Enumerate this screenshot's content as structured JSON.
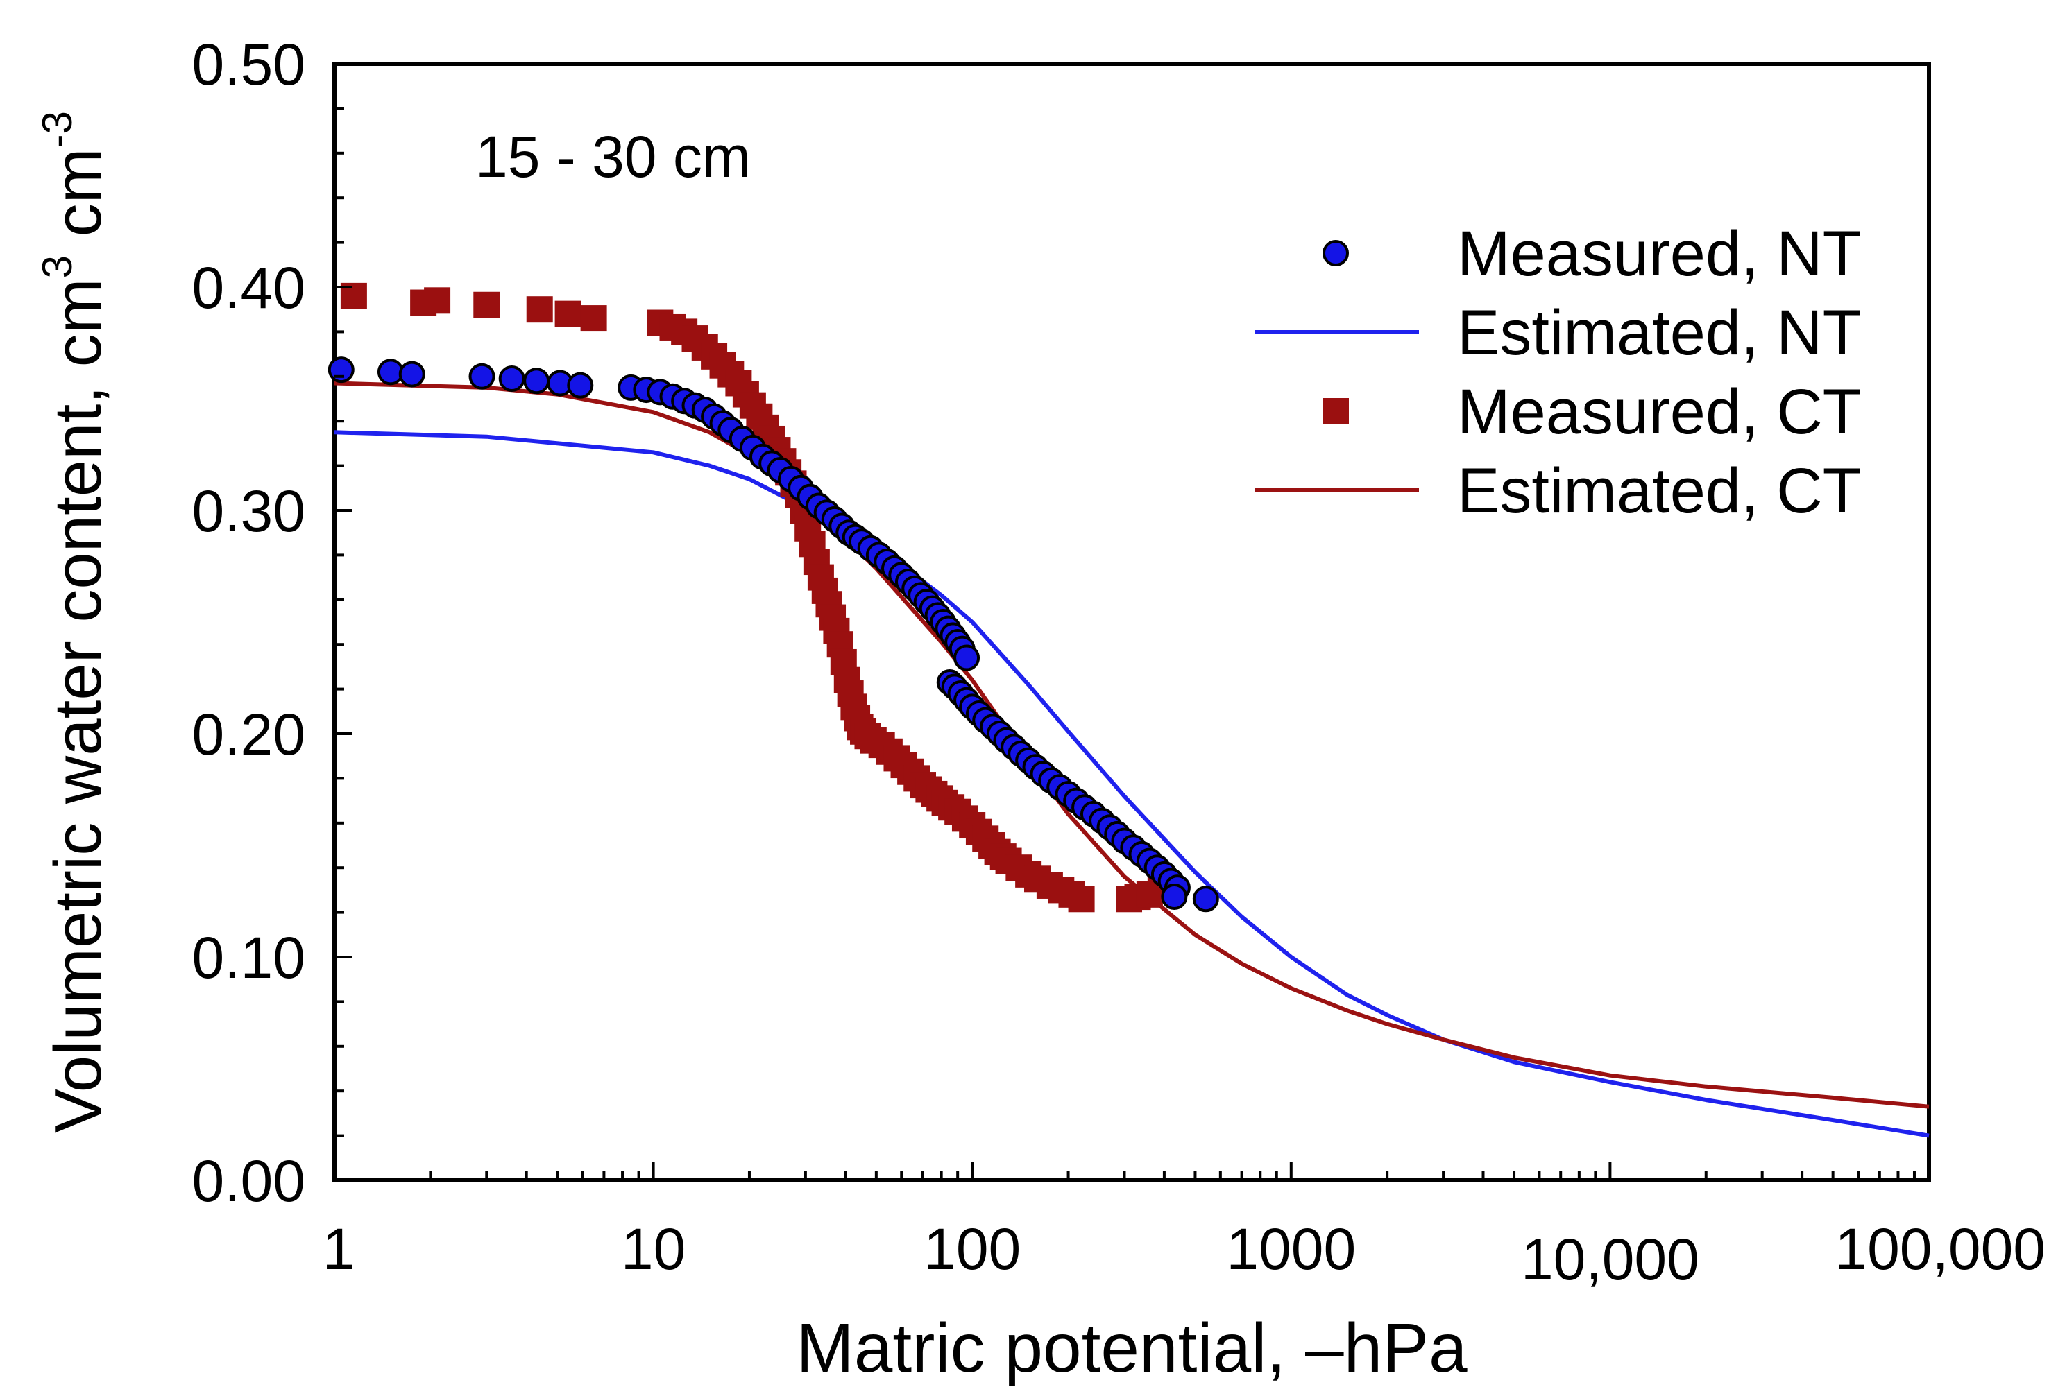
{
  "chart_data": {
    "type": "scatter",
    "annotation": "15 - 30 cm",
    "xlabel": "Matric potential, –hPa",
    "ylabel": {
      "text": "Volumetric water content, cm",
      "sup1": "3",
      "mid": " cm",
      "sup2": "-3"
    },
    "xscale": "log",
    "xlim": [
      1,
      100000
    ],
    "ylim": [
      0.0,
      0.5
    ],
    "xticks": [
      {
        "value": 1,
        "label": "1"
      },
      {
        "value": 10,
        "label": "10"
      },
      {
        "value": 100,
        "label": "100"
      },
      {
        "value": 1000,
        "label": "1000"
      },
      {
        "value": 10000,
        "label": "10,000"
      },
      {
        "value": 100000,
        "label": "100,000"
      }
    ],
    "yticks": [
      {
        "value": 0.0,
        "label": "0.00"
      },
      {
        "value": 0.1,
        "label": "0.10"
      },
      {
        "value": 0.2,
        "label": "0.20"
      },
      {
        "value": 0.3,
        "label": "0.30"
      },
      {
        "value": 0.4,
        "label": "0.40"
      },
      {
        "value": 0.5,
        "label": "0.50"
      }
    ],
    "grid": false,
    "legend_position": "upper-right",
    "series": [
      {
        "name": "Measured, NT",
        "kind": "circle",
        "color": "#1414e6",
        "x": [
          1.05,
          1.5,
          1.75,
          2.9,
          3.6,
          4.3,
          5.1,
          5.9,
          8.5,
          9.5,
          10.5,
          11.5,
          12.5,
          13.5,
          14.5,
          15.5,
          16.5,
          17.5,
          19,
          20.5,
          22,
          23.5,
          25,
          27,
          29,
          31,
          33,
          35,
          37,
          39,
          41,
          43,
          45,
          48,
          51,
          54,
          57,
          60,
          63,
          66,
          69,
          72,
          75,
          78,
          81,
          84,
          87,
          90,
          93,
          96,
          85,
          88,
          92,
          96,
          100,
          105,
          110,
          116,
          122,
          128,
          135,
          142,
          150,
          158,
          167,
          177,
          188,
          200,
          212,
          225,
          240,
          255,
          270,
          285,
          300,
          320,
          340,
          360,
          380,
          400,
          420,
          440,
          430,
          540
        ],
        "y": [
          0.363,
          0.362,
          0.361,
          0.36,
          0.359,
          0.358,
          0.357,
          0.356,
          0.355,
          0.354,
          0.353,
          0.351,
          0.349,
          0.347,
          0.345,
          0.342,
          0.339,
          0.336,
          0.332,
          0.328,
          0.324,
          0.321,
          0.318,
          0.314,
          0.31,
          0.306,
          0.302,
          0.299,
          0.296,
          0.293,
          0.29,
          0.288,
          0.286,
          0.283,
          0.28,
          0.277,
          0.274,
          0.271,
          0.268,
          0.265,
          0.262,
          0.259,
          0.256,
          0.253,
          0.25,
          0.247,
          0.244,
          0.241,
          0.238,
          0.234,
          0.223,
          0.221,
          0.218,
          0.215,
          0.212,
          0.209,
          0.206,
          0.203,
          0.2,
          0.197,
          0.194,
          0.191,
          0.188,
          0.185,
          0.182,
          0.179,
          0.176,
          0.173,
          0.17,
          0.167,
          0.164,
          0.161,
          0.158,
          0.155,
          0.152,
          0.149,
          0.146,
          0.143,
          0.14,
          0.137,
          0.134,
          0.131,
          0.127,
          0.126
        ]
      },
      {
        "name": "Estimated, NT",
        "kind": "line",
        "color": "#1f22ee",
        "x": [
          1,
          3,
          10,
          15,
          20,
          30,
          50,
          80,
          100,
          150,
          200,
          300,
          500,
          700,
          1000,
          1500,
          2000,
          3000,
          5000,
          10000,
          20000,
          50000,
          100000
        ],
        "y": [
          0.335,
          0.333,
          0.326,
          0.32,
          0.314,
          0.301,
          0.284,
          0.262,
          0.25,
          0.222,
          0.201,
          0.172,
          0.138,
          0.118,
          0.1,
          0.083,
          0.074,
          0.063,
          0.053,
          0.044,
          0.036,
          0.027,
          0.02
        ]
      },
      {
        "name": "Measured, CT",
        "kind": "square",
        "color": "#9b1010",
        "x": [
          1.15,
          1.9,
          2.1,
          3.0,
          4.4,
          5.4,
          6.5,
          10.5,
          11.5,
          12.5,
          13.5,
          14.5,
          15.5,
          16.5,
          17.5,
          18.5,
          19.5,
          20.5,
          21.5,
          22.5,
          23.5,
          24.5,
          25.5,
          26.5,
          27.5,
          28.5,
          29.5,
          30.5,
          31.5,
          32.5,
          33.5,
          34.5,
          35.5,
          36.5,
          37.5,
          38.5,
          39.5,
          40.5,
          41.5,
          42.5,
          43.5,
          44.5,
          45.5,
          47,
          49,
          52,
          55,
          58,
          61,
          64,
          67,
          70,
          73,
          76,
          79,
          82,
          86,
          90,
          95,
          100,
          105,
          110,
          115,
          120,
          125,
          130,
          140,
          150,
          160,
          175,
          190,
          205,
          220,
          310,
          330,
          360,
          390
        ],
        "y": [
          0.396,
          0.393,
          0.394,
          0.392,
          0.39,
          0.388,
          0.386,
          0.384,
          0.382,
          0.38,
          0.377,
          0.373,
          0.369,
          0.365,
          0.361,
          0.357,
          0.352,
          0.347,
          0.342,
          0.337,
          0.332,
          0.327,
          0.322,
          0.317,
          0.312,
          0.307,
          0.3,
          0.292,
          0.285,
          0.277,
          0.27,
          0.264,
          0.258,
          0.252,
          0.246,
          0.24,
          0.232,
          0.224,
          0.218,
          0.212,
          0.207,
          0.203,
          0.201,
          0.199,
          0.197,
          0.195,
          0.192,
          0.189,
          0.186,
          0.183,
          0.18,
          0.177,
          0.175,
          0.173,
          0.171,
          0.169,
          0.167,
          0.165,
          0.162,
          0.159,
          0.156,
          0.153,
          0.15,
          0.147,
          0.145,
          0.143,
          0.14,
          0.137,
          0.135,
          0.132,
          0.13,
          0.128,
          0.126,
          0.126,
          0.127,
          0.128,
          0.13
        ]
      },
      {
        "name": "Estimated, CT",
        "kind": "line",
        "color": "#9b1212",
        "x": [
          1,
          3,
          5,
          10,
          15,
          20,
          30,
          50,
          80,
          100,
          150,
          200,
          300,
          500,
          700,
          1000,
          1500,
          2000,
          3000,
          5000,
          10000,
          20000,
          50000,
          100000
        ],
        "y": [
          0.357,
          0.355,
          0.352,
          0.344,
          0.335,
          0.325,
          0.305,
          0.274,
          0.241,
          0.224,
          0.188,
          0.164,
          0.136,
          0.11,
          0.097,
          0.086,
          0.076,
          0.07,
          0.063,
          0.055,
          0.047,
          0.042,
          0.037,
          0.033
        ]
      }
    ]
  }
}
